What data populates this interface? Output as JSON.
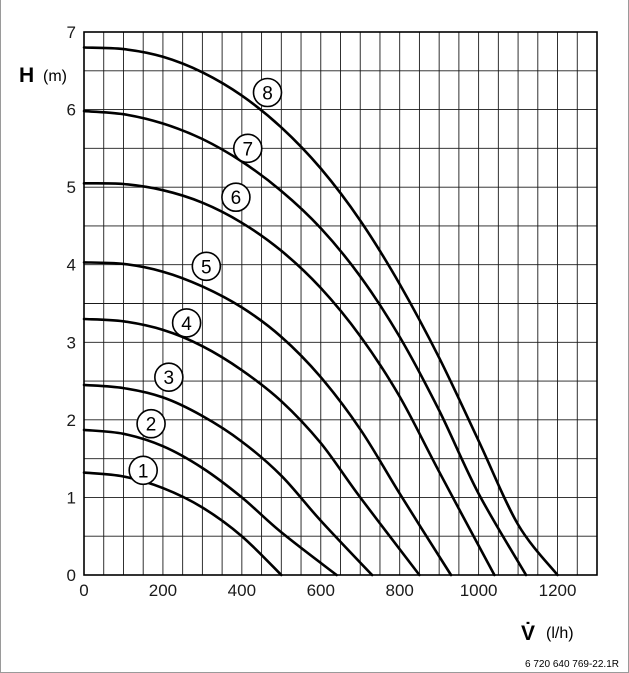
{
  "chart_data": {
    "type": "line",
    "y_axis": {
      "symbol": "H",
      "unit": "(m)",
      "range": [
        0,
        7
      ],
      "ticks": [
        "0",
        "1",
        "2",
        "3",
        "4",
        "5",
        "6",
        "7"
      ]
    },
    "x_axis": {
      "symbol": "V̇",
      "unit": "(l/h)",
      "range": [
        0,
        1300
      ],
      "ticks": [
        "0",
        "200",
        "400",
        "600",
        "800",
        "1000",
        "1200"
      ]
    },
    "grid": true,
    "series": [
      {
        "name": "1",
        "label_at": [
          150,
          1.35
        ],
        "points": [
          [
            0,
            1.32
          ],
          [
            100,
            1.27
          ],
          [
            200,
            1.12
          ],
          [
            300,
            0.87
          ],
          [
            400,
            0.5
          ],
          [
            500,
            0.0
          ]
        ]
      },
      {
        "name": "2",
        "label_at": [
          170,
          1.95
        ],
        "points": [
          [
            0,
            1.87
          ],
          [
            100,
            1.82
          ],
          [
            200,
            1.66
          ],
          [
            300,
            1.38
          ],
          [
            400,
            1.0
          ],
          [
            500,
            0.55
          ],
          [
            640,
            0.0
          ]
        ]
      },
      {
        "name": "3",
        "label_at": [
          215,
          2.55
        ],
        "points": [
          [
            0,
            2.45
          ],
          [
            100,
            2.41
          ],
          [
            200,
            2.29
          ],
          [
            300,
            2.05
          ],
          [
            400,
            1.72
          ],
          [
            500,
            1.28
          ],
          [
            600,
            0.7
          ],
          [
            730,
            0.0
          ]
        ]
      },
      {
        "name": "4",
        "label_at": [
          260,
          3.25
        ],
        "points": [
          [
            0,
            3.3
          ],
          [
            100,
            3.27
          ],
          [
            200,
            3.16
          ],
          [
            300,
            2.95
          ],
          [
            400,
            2.64
          ],
          [
            500,
            2.24
          ],
          [
            600,
            1.7
          ],
          [
            700,
            1.0
          ],
          [
            850,
            0.0
          ]
        ]
      },
      {
        "name": "5",
        "label_at": [
          310,
          3.98
        ],
        "points": [
          [
            0,
            4.03
          ],
          [
            100,
            4.01
          ],
          [
            200,
            3.91
          ],
          [
            300,
            3.72
          ],
          [
            400,
            3.45
          ],
          [
            500,
            3.07
          ],
          [
            600,
            2.55
          ],
          [
            700,
            1.88
          ],
          [
            800,
            1.05
          ],
          [
            930,
            0.0
          ]
        ]
      },
      {
        "name": "6",
        "label_at": [
          385,
          4.87
        ],
        "points": [
          [
            0,
            5.05
          ],
          [
            100,
            5.04
          ],
          [
            200,
            4.96
          ],
          [
            300,
            4.8
          ],
          [
            400,
            4.54
          ],
          [
            500,
            4.18
          ],
          [
            600,
            3.7
          ],
          [
            700,
            3.08
          ],
          [
            800,
            2.3
          ],
          [
            900,
            1.33
          ],
          [
            1040,
            0.0
          ]
        ]
      },
      {
        "name": "7",
        "label_at": [
          415,
          5.5
        ],
        "points": [
          [
            0,
            5.98
          ],
          [
            100,
            5.94
          ],
          [
            200,
            5.82
          ],
          [
            300,
            5.62
          ],
          [
            400,
            5.33
          ],
          [
            500,
            4.95
          ],
          [
            600,
            4.47
          ],
          [
            700,
            3.85
          ],
          [
            800,
            3.07
          ],
          [
            900,
            2.12
          ],
          [
            1000,
            1.05
          ],
          [
            1120,
            0.0
          ]
        ]
      },
      {
        "name": "8",
        "label_at": [
          465,
          6.22
        ],
        "points": [
          [
            0,
            6.8
          ],
          [
            100,
            6.78
          ],
          [
            200,
            6.68
          ],
          [
            300,
            6.48
          ],
          [
            400,
            6.18
          ],
          [
            500,
            5.77
          ],
          [
            600,
            5.24
          ],
          [
            700,
            4.57
          ],
          [
            800,
            3.75
          ],
          [
            900,
            2.8
          ],
          [
            1000,
            1.73
          ],
          [
            1100,
            0.65
          ],
          [
            1200,
            0.0
          ]
        ]
      }
    ]
  },
  "figure_code": "6 720 640 769-22.1R"
}
